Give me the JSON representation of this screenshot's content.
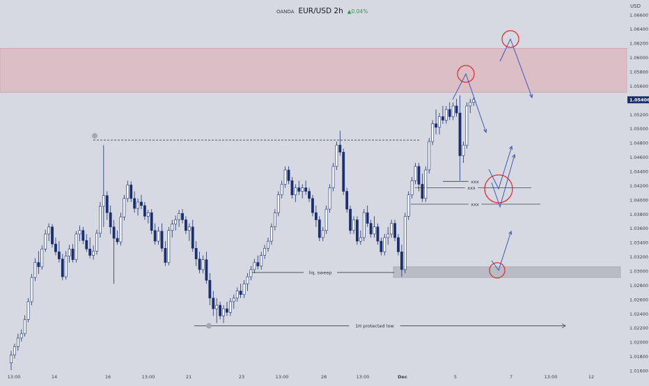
{
  "header": {
    "broker": "OANDA",
    "symbol": "EUR/USD 2h",
    "change": "▲0.04%"
  },
  "colors": {
    "background": "#d6d9e2",
    "bull": "#ffffff",
    "bear": "#1a2e72",
    "zone": "#dcbfc6",
    "circle": "#e0302f",
    "arrow": "#3f56b4",
    "price_tag": "#1a2e72"
  },
  "chart_data": {
    "type": "candlestick",
    "title": "EUR/USD 2h",
    "y_unit": "USD",
    "ylim": [
      1.0161,
      1.0673
    ],
    "y_ticks": [
      "1.06600",
      "1.06400",
      "1.06200",
      "1.06000",
      "1.05800",
      "1.05600",
      "1.05406",
      "1.05200",
      "1.05000",
      "1.04800",
      "1.04600",
      "1.04400",
      "1.04200",
      "1.04000",
      "1.03800",
      "1.03600",
      "1.03400",
      "1.03200",
      "1.03000",
      "1.02800",
      "1.02600",
      "1.02400",
      "1.02200",
      "1.02000",
      "1.01800",
      "1.01600"
    ],
    "current_price": "1.05406",
    "x_ticks": [
      "13:00",
      "14",
      "16",
      "13:00",
      "21",
      "23",
      "13:00",
      "28",
      "13:00",
      "Dec",
      "5",
      "7",
      "13:00",
      "12"
    ],
    "ohlc": [
      {
        "o": 1.0171,
        "h": 1.0188,
        "l": 1.0161,
        "c": 1.0182
      },
      {
        "o": 1.0182,
        "h": 1.0198,
        "l": 1.0177,
        "c": 1.0194
      },
      {
        "o": 1.0194,
        "h": 1.0212,
        "l": 1.0188,
        "c": 1.0206
      },
      {
        "o": 1.0206,
        "h": 1.0218,
        "l": 1.0201,
        "c": 1.0212
      },
      {
        "o": 1.0212,
        "h": 1.0238,
        "l": 1.0208,
        "c": 1.0232
      },
      {
        "o": 1.0232,
        "h": 1.0262,
        "l": 1.0228,
        "c": 1.0257
      },
      {
        "o": 1.0257,
        "h": 1.0296,
        "l": 1.0252,
        "c": 1.0291
      },
      {
        "o": 1.0291,
        "h": 1.0318,
        "l": 1.0286,
        "c": 1.0312
      },
      {
        "o": 1.0312,
        "h": 1.0328,
        "l": 1.0296,
        "c": 1.0306
      },
      {
        "o": 1.0306,
        "h": 1.0336,
        "l": 1.0302,
        "c": 1.0331
      },
      {
        "o": 1.0331,
        "h": 1.0358,
        "l": 1.0327,
        "c": 1.0352
      },
      {
        "o": 1.0352,
        "h": 1.0367,
        "l": 1.0342,
        "c": 1.0362
      },
      {
        "o": 1.0362,
        "h": 1.0366,
        "l": 1.0333,
        "c": 1.0338
      },
      {
        "o": 1.0338,
        "h": 1.0347,
        "l": 1.0322,
        "c": 1.0327
      },
      {
        "o": 1.0327,
        "h": 1.0342,
        "l": 1.0312,
        "c": 1.0317
      },
      {
        "o": 1.0317,
        "h": 1.0324,
        "l": 1.0287,
        "c": 1.0292
      },
      {
        "o": 1.0292,
        "h": 1.0328,
        "l": 1.0288,
        "c": 1.0321
      },
      {
        "o": 1.0321,
        "h": 1.0337,
        "l": 1.0312,
        "c": 1.0331
      },
      {
        "o": 1.0331,
        "h": 1.0338,
        "l": 1.0312,
        "c": 1.0316
      },
      {
        "o": 1.0316,
        "h": 1.0356,
        "l": 1.0312,
        "c": 1.0352
      },
      {
        "o": 1.0352,
        "h": 1.0364,
        "l": 1.0342,
        "c": 1.0357
      },
      {
        "o": 1.0357,
        "h": 1.0362,
        "l": 1.0338,
        "c": 1.0343
      },
      {
        "o": 1.0343,
        "h": 1.0352,
        "l": 1.0327,
        "c": 1.0331
      },
      {
        "o": 1.0331,
        "h": 1.0347,
        "l": 1.0318,
        "c": 1.0322
      },
      {
        "o": 1.0322,
        "h": 1.0336,
        "l": 1.0316,
        "c": 1.0328
      },
      {
        "o": 1.0328,
        "h": 1.0358,
        "l": 1.0323,
        "c": 1.0353
      },
      {
        "o": 1.0353,
        "h": 1.0397,
        "l": 1.0347,
        "c": 1.0391
      },
      {
        "o": 1.0391,
        "h": 1.0477,
        "l": 1.0362,
        "c": 1.0406
      },
      {
        "o": 1.0406,
        "h": 1.0412,
        "l": 1.0372,
        "c": 1.0382
      },
      {
        "o": 1.0382,
        "h": 1.0392,
        "l": 1.0352,
        "c": 1.0362
      },
      {
        "o": 1.0362,
        "h": 1.0372,
        "l": 1.0282,
        "c": 1.0346
      },
      {
        "o": 1.0346,
        "h": 1.0357,
        "l": 1.0337,
        "c": 1.0341
      },
      {
        "o": 1.0341,
        "h": 1.0382,
        "l": 1.0336,
        "c": 1.0376
      },
      {
        "o": 1.0376,
        "h": 1.0407,
        "l": 1.0371,
        "c": 1.0402
      },
      {
        "o": 1.0402,
        "h": 1.0427,
        "l": 1.0397,
        "c": 1.0421
      },
      {
        "o": 1.0421,
        "h": 1.0426,
        "l": 1.0397,
        "c": 1.0402
      },
      {
        "o": 1.0402,
        "h": 1.0412,
        "l": 1.0382,
        "c": 1.0388
      },
      {
        "o": 1.0388,
        "h": 1.0402,
        "l": 1.0378,
        "c": 1.0397
      },
      {
        "o": 1.0397,
        "h": 1.0407,
        "l": 1.0387,
        "c": 1.0392
      },
      {
        "o": 1.0392,
        "h": 1.0397,
        "l": 1.0372,
        "c": 1.0377
      },
      {
        "o": 1.0377,
        "h": 1.0386,
        "l": 1.0367,
        "c": 1.0382
      },
      {
        "o": 1.0382,
        "h": 1.0387,
        "l": 1.0352,
        "c": 1.0357
      },
      {
        "o": 1.0357,
        "h": 1.0367,
        "l": 1.0337,
        "c": 1.0342
      },
      {
        "o": 1.0342,
        "h": 1.0362,
        "l": 1.0337,
        "c": 1.0356
      },
      {
        "o": 1.0356,
        "h": 1.0367,
        "l": 1.0327,
        "c": 1.0332
      },
      {
        "o": 1.0332,
        "h": 1.0342,
        "l": 1.0307,
        "c": 1.0312
      },
      {
        "o": 1.0312,
        "h": 1.0362,
        "l": 1.0308,
        "c": 1.0357
      },
      {
        "o": 1.0357,
        "h": 1.0372,
        "l": 1.0347,
        "c": 1.0366
      },
      {
        "o": 1.0366,
        "h": 1.0378,
        "l": 1.0357,
        "c": 1.0372
      },
      {
        "o": 1.0372,
        "h": 1.0386,
        "l": 1.0362,
        "c": 1.0381
      },
      {
        "o": 1.0381,
        "h": 1.0387,
        "l": 1.0367,
        "c": 1.0372
      },
      {
        "o": 1.0372,
        "h": 1.0377,
        "l": 1.0352,
        "c": 1.0357
      },
      {
        "o": 1.0357,
        "h": 1.0367,
        "l": 1.0342,
        "c": 1.0362
      },
      {
        "o": 1.0362,
        "h": 1.0372,
        "l": 1.0327,
        "c": 1.0332
      },
      {
        "o": 1.0332,
        "h": 1.0342,
        "l": 1.0307,
        "c": 1.0317
      },
      {
        "o": 1.0317,
        "h": 1.0327,
        "l": 1.0297,
        "c": 1.0302
      },
      {
        "o": 1.0302,
        "h": 1.0322,
        "l": 1.0297,
        "c": 1.0316
      },
      {
        "o": 1.0316,
        "h": 1.0327,
        "l": 1.0282,
        "c": 1.0287
      },
      {
        "o": 1.0287,
        "h": 1.0297,
        "l": 1.0252,
        "c": 1.0262
      },
      {
        "o": 1.0262,
        "h": 1.0272,
        "l": 1.0237,
        "c": 1.0247
      },
      {
        "o": 1.0247,
        "h": 1.0262,
        "l": 1.0227,
        "c": 1.0252
      },
      {
        "o": 1.0252,
        "h": 1.0257,
        "l": 1.0232,
        "c": 1.0237
      },
      {
        "o": 1.0237,
        "h": 1.0252,
        "l": 1.0227,
        "c": 1.0247
      },
      {
        "o": 1.0247,
        "h": 1.0257,
        "l": 1.0237,
        "c": 1.0242
      },
      {
        "o": 1.0242,
        "h": 1.0262,
        "l": 1.0237,
        "c": 1.0257
      },
      {
        "o": 1.0257,
        "h": 1.0267,
        "l": 1.0247,
        "c": 1.0262
      },
      {
        "o": 1.0262,
        "h": 1.0277,
        "l": 1.0257,
        "c": 1.0272
      },
      {
        "o": 1.0272,
        "h": 1.0282,
        "l": 1.0262,
        "c": 1.0267
      },
      {
        "o": 1.0267,
        "h": 1.0287,
        "l": 1.0262,
        "c": 1.0282
      },
      {
        "o": 1.0282,
        "h": 1.0297,
        "l": 1.0272,
        "c": 1.0292
      },
      {
        "o": 1.0292,
        "h": 1.0307,
        "l": 1.0287,
        "c": 1.0302
      },
      {
        "o": 1.0302,
        "h": 1.0317,
        "l": 1.0297,
        "c": 1.0312
      },
      {
        "o": 1.0312,
        "h": 1.0322,
        "l": 1.0302,
        "c": 1.0307
      },
      {
        "o": 1.0307,
        "h": 1.0327,
        "l": 1.0302,
        "c": 1.0322
      },
      {
        "o": 1.0322,
        "h": 1.0337,
        "l": 1.0317,
        "c": 1.0332
      },
      {
        "o": 1.0332,
        "h": 1.0347,
        "l": 1.0327,
        "c": 1.0342
      },
      {
        "o": 1.0342,
        "h": 1.0367,
        "l": 1.0337,
        "c": 1.0362
      },
      {
        "o": 1.0362,
        "h": 1.0387,
        "l": 1.0357,
        "c": 1.0382
      },
      {
        "o": 1.0382,
        "h": 1.0412,
        "l": 1.0377,
        "c": 1.0407
      },
      {
        "o": 1.0407,
        "h": 1.0427,
        "l": 1.0402,
        "c": 1.0422
      },
      {
        "o": 1.0422,
        "h": 1.0447,
        "l": 1.0417,
        "c": 1.0442
      },
      {
        "o": 1.0442,
        "h": 1.0447,
        "l": 1.0422,
        "c": 1.0427
      },
      {
        "o": 1.0427,
        "h": 1.0432,
        "l": 1.0402,
        "c": 1.0407
      },
      {
        "o": 1.0407,
        "h": 1.0422,
        "l": 1.0397,
        "c": 1.0417
      },
      {
        "o": 1.0417,
        "h": 1.0427,
        "l": 1.0407,
        "c": 1.0412
      },
      {
        "o": 1.0412,
        "h": 1.0422,
        "l": 1.0402,
        "c": 1.0417
      },
      {
        "o": 1.0417,
        "h": 1.0427,
        "l": 1.0407,
        "c": 1.0412
      },
      {
        "o": 1.0412,
        "h": 1.0417,
        "l": 1.0397,
        "c": 1.0402
      },
      {
        "o": 1.0402,
        "h": 1.0407,
        "l": 1.0377,
        "c": 1.0382
      },
      {
        "o": 1.0382,
        "h": 1.0392,
        "l": 1.0362,
        "c": 1.0372
      },
      {
        "o": 1.0372,
        "h": 1.0377,
        "l": 1.0342,
        "c": 1.0347
      },
      {
        "o": 1.0347,
        "h": 1.0362,
        "l": 1.0342,
        "c": 1.0357
      },
      {
        "o": 1.0357,
        "h": 1.0392,
        "l": 1.0352,
        "c": 1.0387
      },
      {
        "o": 1.0387,
        "h": 1.0422,
        "l": 1.0382,
        "c": 1.0417
      },
      {
        "o": 1.0417,
        "h": 1.0452,
        "l": 1.0412,
        "c": 1.0447
      },
      {
        "o": 1.0447,
        "h": 1.0482,
        "l": 1.0442,
        "c": 1.0477
      },
      {
        "o": 1.0477,
        "h": 1.0497,
        "l": 1.0462,
        "c": 1.0467
      },
      {
        "o": 1.0467,
        "h": 1.0472,
        "l": 1.0407,
        "c": 1.0412
      },
      {
        "o": 1.0412,
        "h": 1.0417,
        "l": 1.0382,
        "c": 1.0387
      },
      {
        "o": 1.0387,
        "h": 1.0392,
        "l": 1.0352,
        "c": 1.0357
      },
      {
        "o": 1.0357,
        "h": 1.0377,
        "l": 1.0352,
        "c": 1.0372
      },
      {
        "o": 1.0372,
        "h": 1.0377,
        "l": 1.0337,
        "c": 1.0342
      },
      {
        "o": 1.0342,
        "h": 1.0357,
        "l": 1.0337,
        "c": 1.0347
      },
      {
        "o": 1.0347,
        "h": 1.0387,
        "l": 1.0342,
        "c": 1.0382
      },
      {
        "o": 1.0382,
        "h": 1.0392,
        "l": 1.0362,
        "c": 1.0367
      },
      {
        "o": 1.0367,
        "h": 1.0372,
        "l": 1.0347,
        "c": 1.0352
      },
      {
        "o": 1.0352,
        "h": 1.0377,
        "l": 1.0347,
        "c": 1.0362
      },
      {
        "o": 1.0362,
        "h": 1.0367,
        "l": 1.0337,
        "c": 1.0342
      },
      {
        "o": 1.0342,
        "h": 1.0347,
        "l": 1.0322,
        "c": 1.0327
      },
      {
        "o": 1.0327,
        "h": 1.0352,
        "l": 1.0322,
        "c": 1.0347
      },
      {
        "o": 1.0347,
        "h": 1.0362,
        "l": 1.0337,
        "c": 1.0352
      },
      {
        "o": 1.0352,
        "h": 1.0372,
        "l": 1.0347,
        "c": 1.0367
      },
      {
        "o": 1.0367,
        "h": 1.0372,
        "l": 1.0342,
        "c": 1.0347
      },
      {
        "o": 1.0347,
        "h": 1.0352,
        "l": 1.0322,
        "c": 1.0327
      },
      {
        "o": 1.0327,
        "h": 1.0337,
        "l": 1.0292,
        "c": 1.0302
      },
      {
        "o": 1.0302,
        "h": 1.0382,
        "l": 1.0297,
        "c": 1.0377
      },
      {
        "o": 1.0377,
        "h": 1.0412,
        "l": 1.0372,
        "c": 1.0407
      },
      {
        "o": 1.0407,
        "h": 1.0432,
        "l": 1.0402,
        "c": 1.0427
      },
      {
        "o": 1.0427,
        "h": 1.0452,
        "l": 1.0422,
        "c": 1.0447
      },
      {
        "o": 1.0447,
        "h": 1.0452,
        "l": 1.0412,
        "c": 1.0422
      },
      {
        "o": 1.0422,
        "h": 1.0437,
        "l": 1.0397,
        "c": 1.0402
      },
      {
        "o": 1.0402,
        "h": 1.0447,
        "l": 1.0397,
        "c": 1.0442
      },
      {
        "o": 1.0442,
        "h": 1.0487,
        "l": 1.0437,
        "c": 1.0482
      },
      {
        "o": 1.0482,
        "h": 1.0512,
        "l": 1.0477,
        "c": 1.0507
      },
      {
        "o": 1.0507,
        "h": 1.0527,
        "l": 1.0492,
        "c": 1.0502
      },
      {
        "o": 1.0502,
        "h": 1.0522,
        "l": 1.0492,
        "c": 1.0517
      },
      {
        "o": 1.0517,
        "h": 1.0532,
        "l": 1.0507,
        "c": 1.0512
      },
      {
        "o": 1.0512,
        "h": 1.0532,
        "l": 1.0507,
        "c": 1.0527
      },
      {
        "o": 1.0527,
        "h": 1.0537,
        "l": 1.0512,
        "c": 1.0517
      },
      {
        "o": 1.0517,
        "h": 1.0537,
        "l": 1.0512,
        "c": 1.0532
      },
      {
        "o": 1.0532,
        "h": 1.0542,
        "l": 1.0517,
        "c": 1.0522
      },
      {
        "o": 1.0522,
        "h": 1.0547,
        "l": 1.0427,
        "c": 1.0462
      },
      {
        "o": 1.0462,
        "h": 1.0482,
        "l": 1.0452,
        "c": 1.0477
      },
      {
        "o": 1.0477,
        "h": 1.0537,
        "l": 1.0472,
        "c": 1.0532
      },
      {
        "o": 1.0532,
        "h": 1.0542,
        "l": 1.0522,
        "c": 1.0537
      },
      {
        "o": 1.0537,
        "h": 1.0544,
        "l": 1.0532,
        "c": 1.0541
      }
    ],
    "levels": [
      {
        "label": "",
        "price": 1.0484,
        "style": "dashed"
      },
      {
        "label": "xxx",
        "price": 1.0426,
        "style": "solid"
      },
      {
        "label": "xxx",
        "price": 1.0417,
        "style": "solid"
      },
      {
        "label": "xxx",
        "price": 1.0394,
        "style": "solid"
      },
      {
        "label": "liq. sweep",
        "price": 1.0298,
        "style": "solid"
      },
      {
        "label": "1H protected low",
        "price": 1.0223,
        "style": "arrow"
      }
    ],
    "zones": [
      {
        "from": 1.0551,
        "to": 1.0613,
        "color": "#dcbfc6"
      },
      {
        "from": 1.0291,
        "to": 1.0306,
        "color": "#b9bcc4"
      }
    ],
    "grid": false
  }
}
